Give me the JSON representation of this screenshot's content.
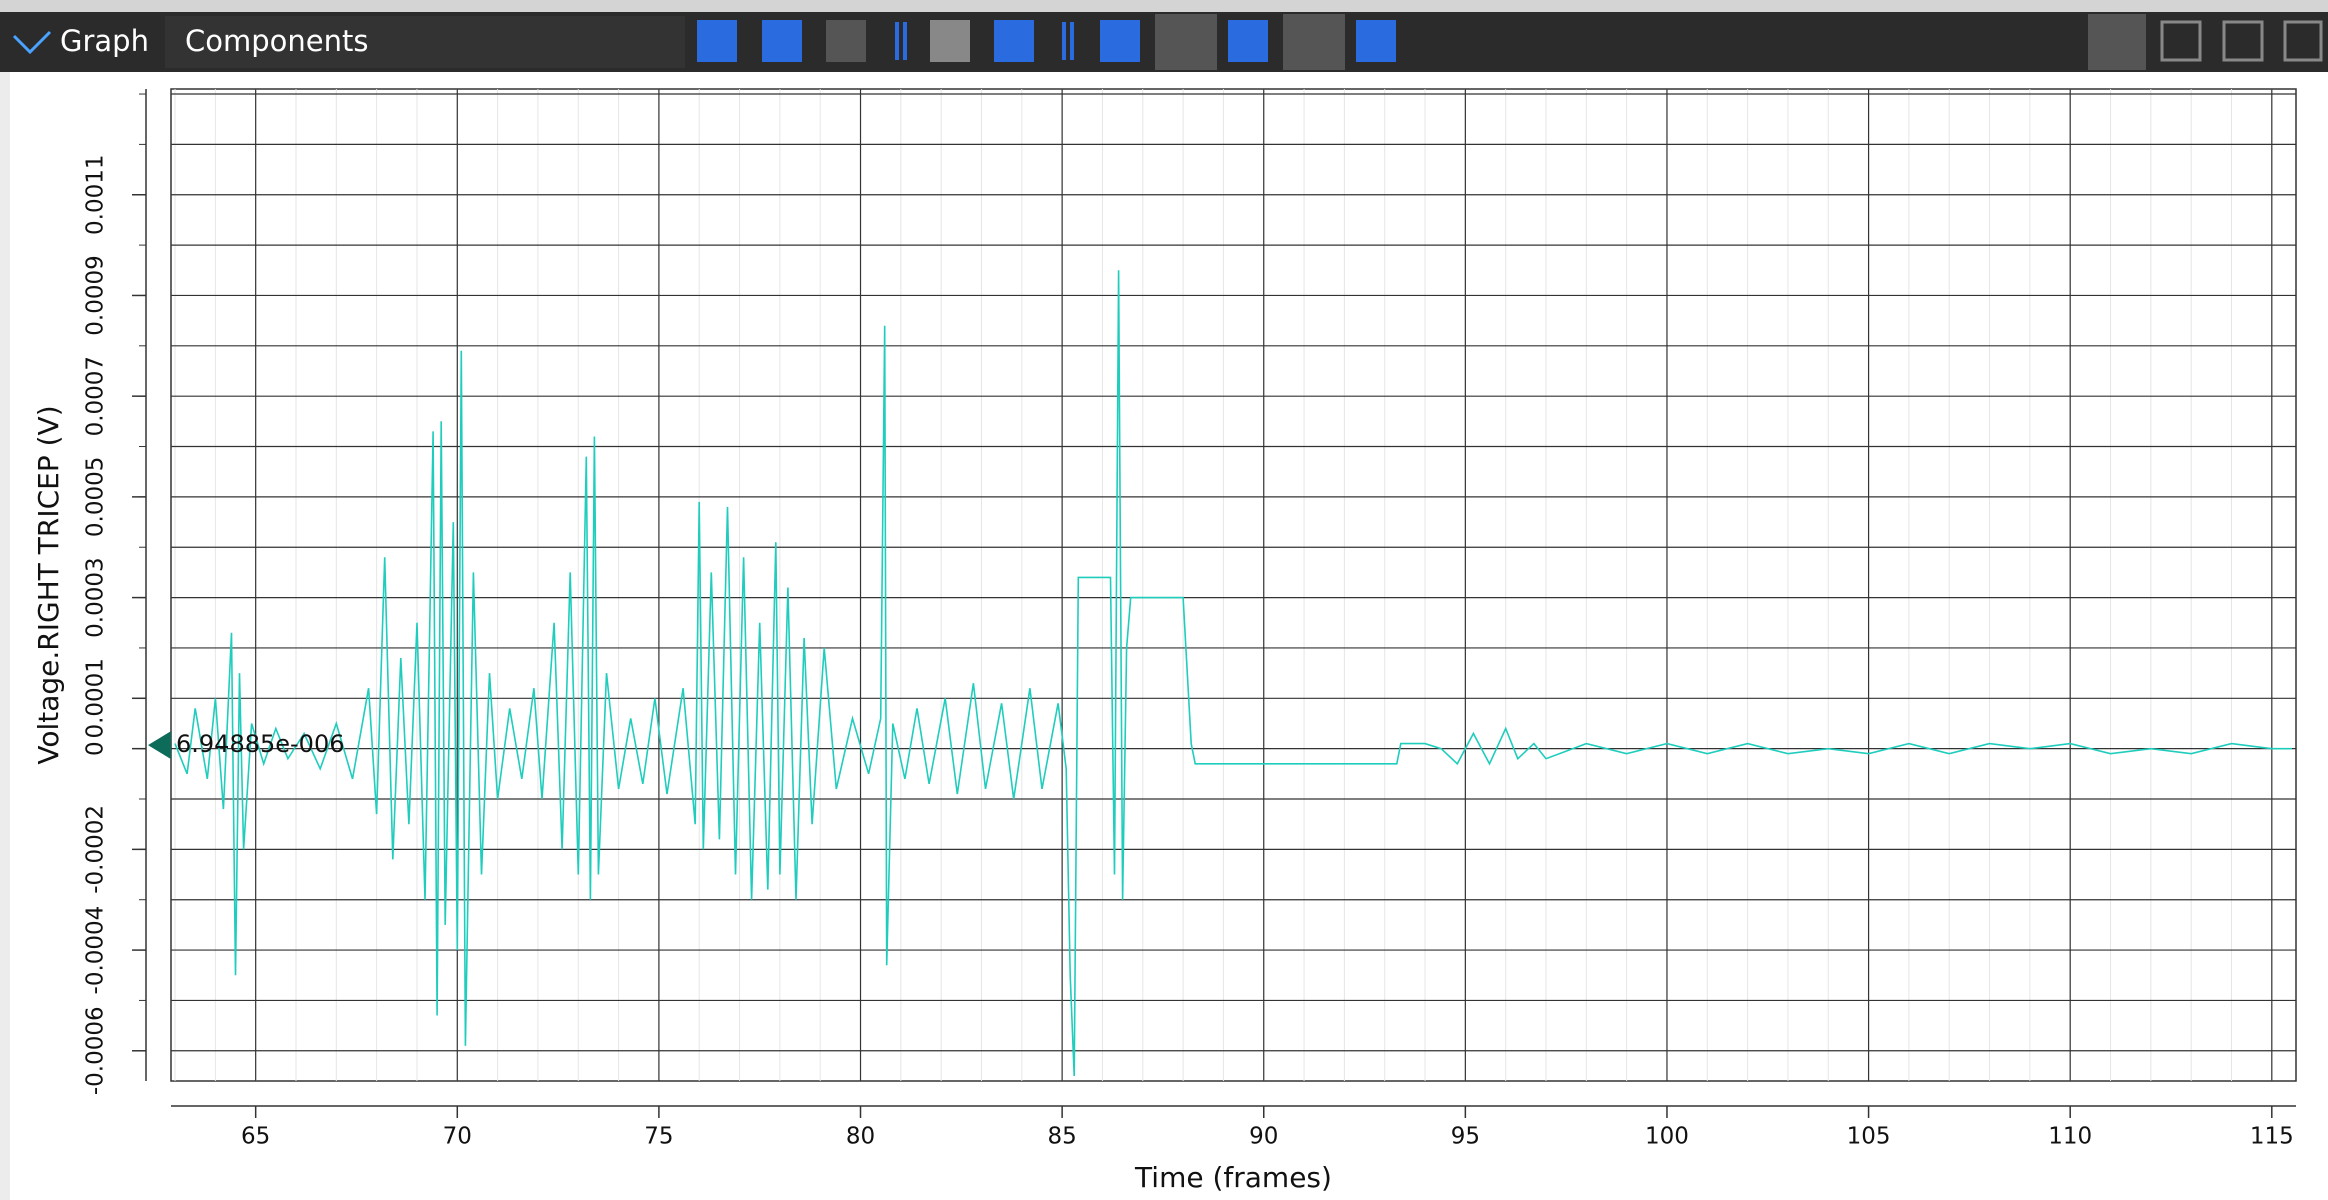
{
  "toolbar": {
    "tab": "Graph",
    "menu": "Components"
  },
  "chart_data": {
    "type": "line",
    "y_label": "Voltage.RIGHT TRICEP (V)",
    "x_label": "Time (frames)",
    "xlim": [
      62.9,
      115.6
    ],
    "xticks": [
      65,
      70,
      75,
      80,
      85,
      90,
      95,
      100,
      105,
      110,
      115
    ],
    "ylim": [
      -0.00066,
      0.00131
    ],
    "yticks": [
      -0.0006,
      -0.0004,
      -0.0002,
      0,
      0.0001,
      0.0003,
      0.0005,
      0.0007,
      0.0009,
      0.0011
    ],
    "ygrid": [
      -0.0006,
      -0.0005,
      -0.0004,
      -0.0003,
      -0.0002,
      -0.0001,
      0,
      0.0001,
      0.0002,
      0.0003,
      0.0004,
      0.0005,
      0.0006,
      0.0007,
      0.0008,
      0.0009,
      0.001,
      0.0011,
      0.0012,
      0.0013
    ],
    "grid": true,
    "cursor": {
      "value": 6.94885e-06,
      "label": "6.94885e-006"
    },
    "x": [
      63.0,
      63.3,
      63.5,
      63.8,
      64.0,
      64.2,
      64.4,
      64.5,
      64.6,
      64.7,
      64.9,
      65.2,
      65.5,
      65.8,
      66.2,
      66.6,
      67.0,
      67.4,
      67.8,
      68.0,
      68.2,
      68.4,
      68.6,
      68.8,
      69.0,
      69.2,
      69.4,
      69.5,
      69.6,
      69.7,
      69.9,
      70.0,
      70.1,
      70.2,
      70.4,
      70.6,
      70.8,
      71.0,
      71.3,
      71.6,
      71.9,
      72.1,
      72.4,
      72.6,
      72.8,
      73.0,
      73.2,
      73.3,
      73.4,
      73.5,
      73.7,
      74.0,
      74.3,
      74.6,
      74.9,
      75.2,
      75.6,
      75.9,
      76.0,
      76.1,
      76.3,
      76.5,
      76.7,
      76.9,
      77.1,
      77.3,
      77.5,
      77.7,
      77.9,
      78.0,
      78.2,
      78.4,
      78.6,
      78.8,
      79.1,
      79.4,
      79.8,
      80.2,
      80.5,
      80.6,
      80.65,
      80.8,
      81.1,
      81.4,
      81.7,
      82.1,
      82.4,
      82.8,
      83.1,
      83.5,
      83.8,
      84.2,
      84.5,
      84.9,
      85.1,
      85.2,
      85.3,
      85.4,
      86.2,
      86.3,
      86.4,
      86.5,
      86.6,
      86.7,
      88.0,
      88.2,
      88.3,
      93.3,
      93.4,
      94.0,
      94.4,
      94.8,
      95.2,
      95.6,
      96.0,
      96.3,
      96.7,
      97.0,
      98,
      99,
      100,
      101,
      102,
      103,
      104,
      105,
      106,
      107,
      108,
      109,
      110,
      111,
      112,
      113,
      114,
      115,
      115.5
    ],
    "series": [
      {
        "color": "#1fcdbd",
        "values": [
          1e-05,
          -5e-05,
          8e-05,
          -6e-05,
          0.0001,
          -0.00012,
          0.00023,
          -0.00045,
          0.00015,
          -0.0002,
          5e-05,
          -3e-05,
          4e-05,
          -2e-05,
          3e-05,
          -4e-05,
          5e-05,
          -6e-05,
          0.00012,
          -0.00013,
          0.00038,
          -0.00022,
          0.00018,
          -0.00015,
          0.00025,
          -0.0003,
          0.00063,
          -0.00053,
          0.00065,
          -0.00035,
          0.00045,
          -0.0004,
          0.00079,
          -0.00059,
          0.00035,
          -0.00025,
          0.00015,
          -0.0001,
          8e-05,
          -6e-05,
          0.00012,
          -0.0001,
          0.00025,
          -0.0002,
          0.00035,
          -0.00025,
          0.00058,
          -0.0003,
          0.00062,
          -0.00025,
          0.00015,
          -8e-05,
          6e-05,
          -7e-05,
          0.0001,
          -9e-05,
          0.00012,
          -0.00015,
          0.00049,
          -0.0002,
          0.00035,
          -0.00018,
          0.00048,
          -0.00025,
          0.00038,
          -0.0003,
          0.00025,
          -0.00028,
          0.00041,
          -0.00025,
          0.00032,
          -0.0003,
          0.00022,
          -0.00015,
          0.0002,
          -8e-05,
          6e-05,
          -5e-05,
          6e-05,
          0.00084,
          -0.00043,
          5e-05,
          -6e-05,
          8e-05,
          -7e-05,
          0.0001,
          -9e-05,
          0.00013,
          -8e-05,
          9e-05,
          -0.0001,
          0.00012,
          -8e-05,
          9e-05,
          -4e-05,
          -0.00045,
          -0.00065,
          0.00034,
          0.00034,
          -0.00025,
          0.00095,
          -0.0003,
          0.0002,
          0.0003,
          0.0003,
          1e-05,
          -3e-05,
          -3e-05,
          1e-05,
          1e-05,
          0,
          -3e-05,
          3e-05,
          -3e-05,
          4e-05,
          -2e-05,
          1e-05,
          -2e-05,
          1e-05,
          -1e-05,
          1e-05,
          -1e-05,
          1e-05,
          -1e-05,
          0,
          -1e-05,
          1e-05,
          -1e-05,
          1e-05,
          0,
          1e-05,
          -1e-05,
          0,
          -1e-05,
          1e-05,
          0,
          0
        ]
      }
    ]
  }
}
